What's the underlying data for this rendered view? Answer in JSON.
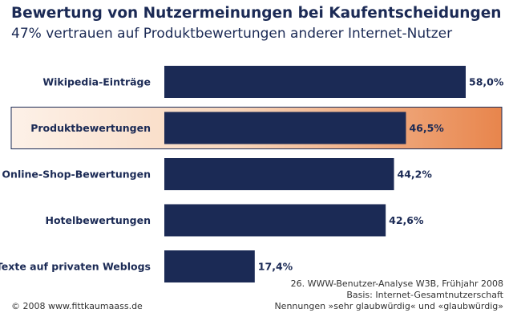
{
  "chart_data": {
    "type": "bar",
    "orientation": "horizontal",
    "title": "Bewertung von Nutzermeinungen bei Kaufentscheidungen",
    "subtitle": "47% vertrauen auf Produktbewertungen anderer Internet-Nutzer",
    "categories": [
      "Wikipedia-Einträge",
      "Produktbewertungen",
      "Online-Shop-Bewertungen",
      "Hotelbewertungen",
      "Texte auf privaten Weblogs"
    ],
    "values": [
      58.0,
      46.5,
      44.2,
      42.6,
      17.4
    ],
    "value_labels": [
      "58,0%",
      "46,5%",
      "44,2%",
      "42,6%",
      "17,4%"
    ],
    "unit": "%",
    "xlim": [
      0,
      60
    ],
    "highlighted_category": "Produktbewertungen",
    "colors": {
      "bar": "#1b2a55",
      "highlight_start": "#fdf1e8",
      "highlight_end": "#e8854c",
      "highlight_border": "#1b2a55"
    }
  },
  "source": {
    "line1": "26. WWW-Benutzer-Analyse W3B, Frühjahr 2008",
    "line2": "Basis: Internet-Gesamtnutzerschaft",
    "line3": "Nennungen »sehr glaubwürdig« und «glaubwürdig»"
  },
  "copyright": "© 2008 www.fittkaumaass.de"
}
